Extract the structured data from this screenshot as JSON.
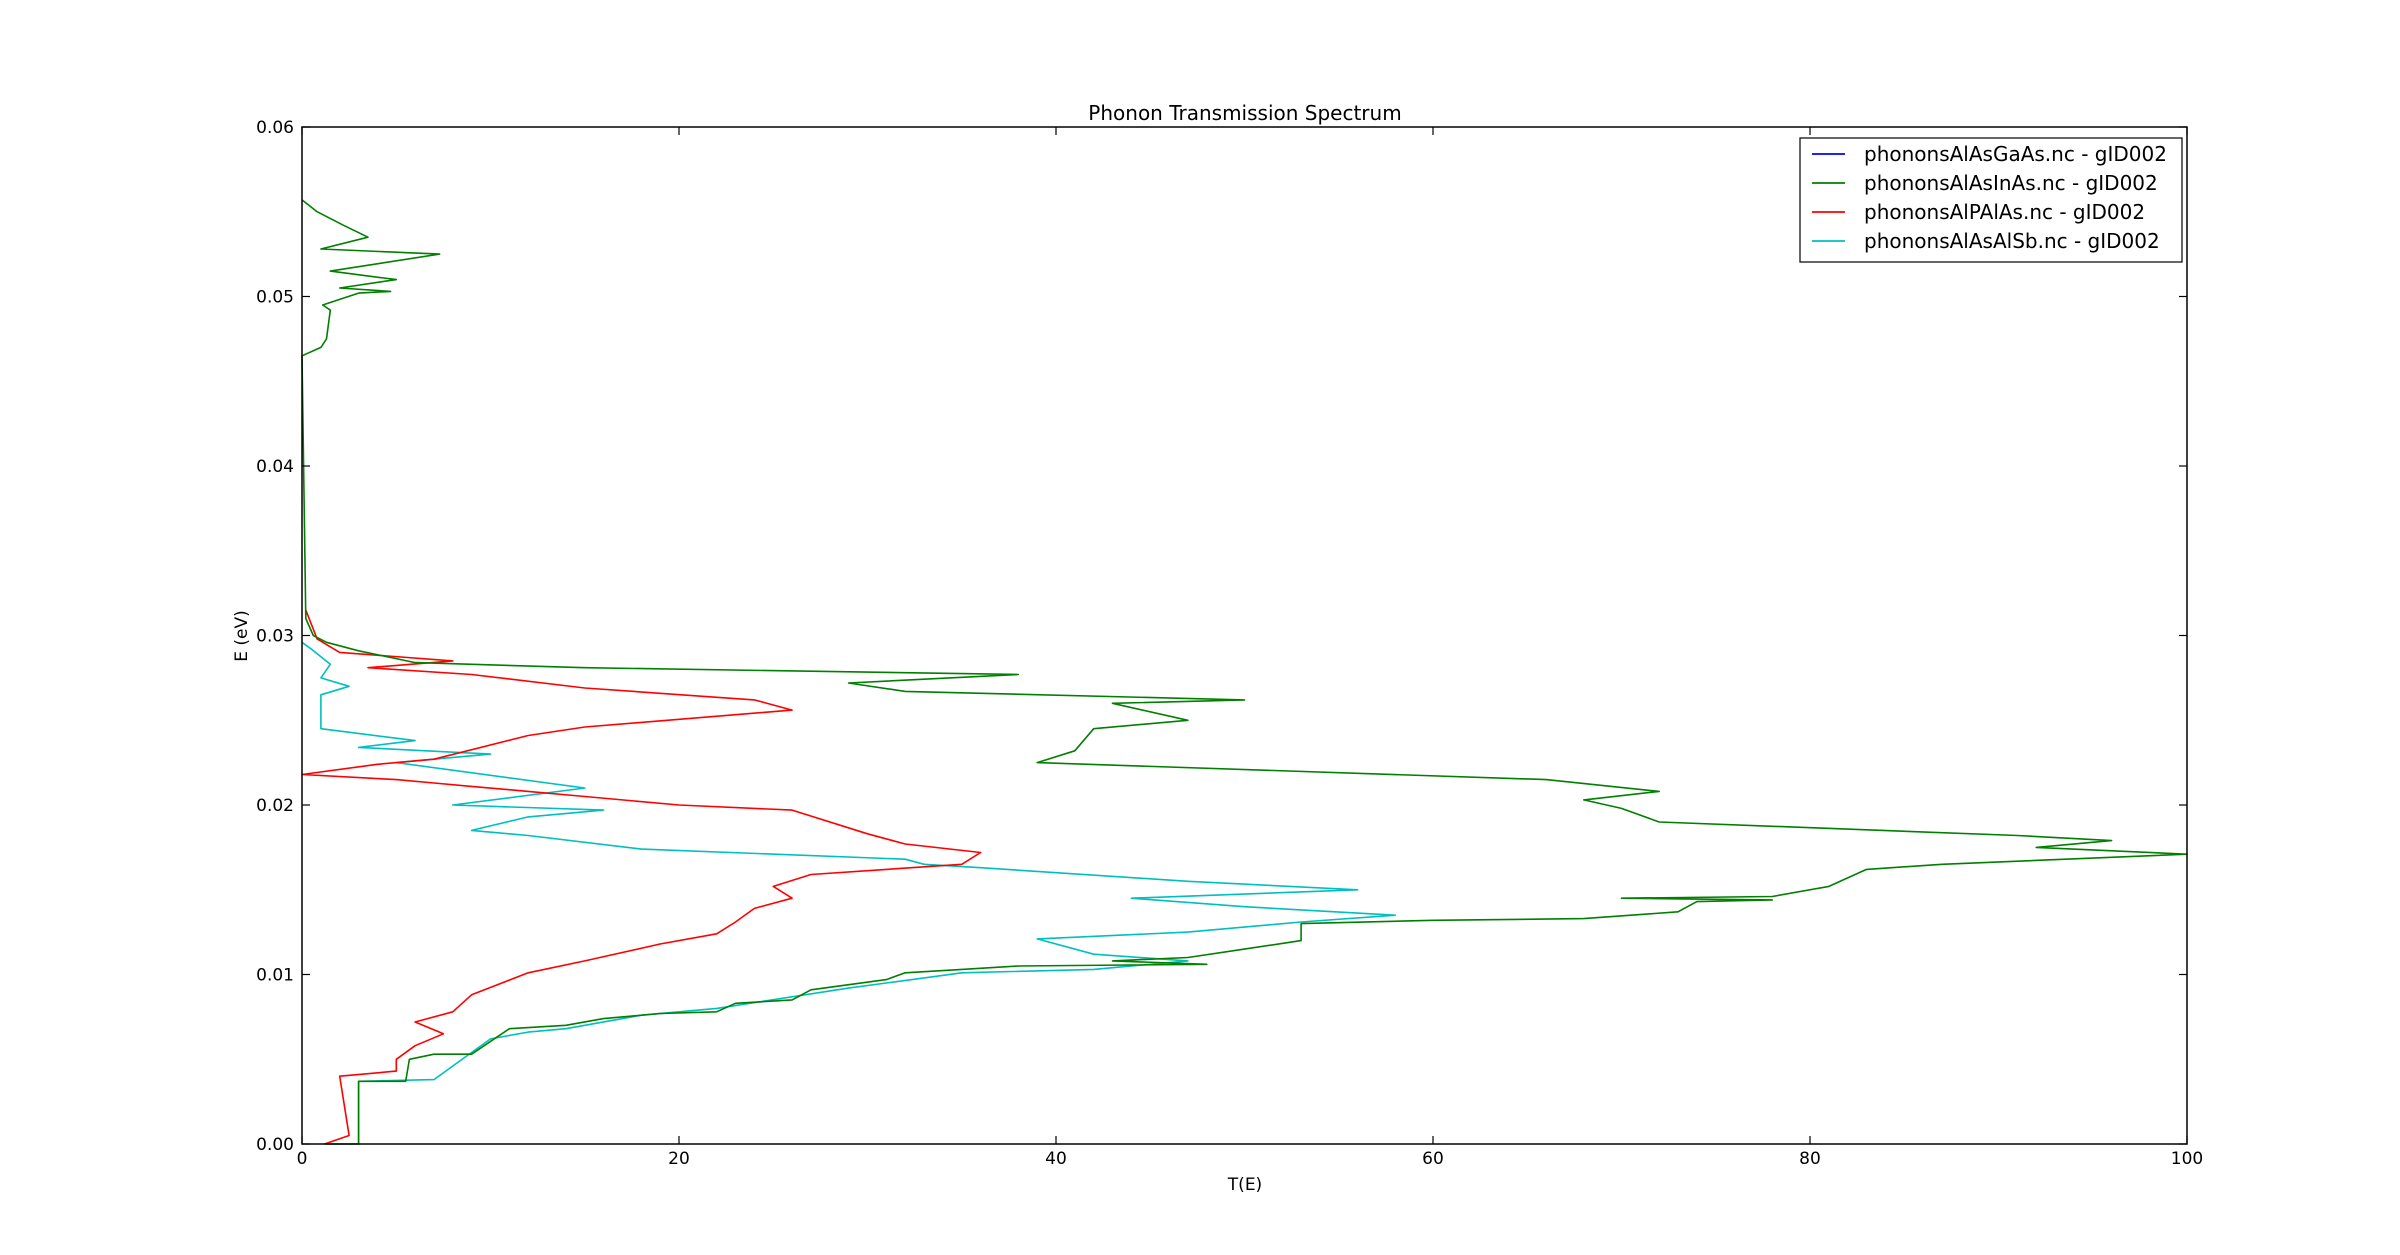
{
  "chart_data": {
    "type": "line",
    "title": "Phonon Transmission Spectrum",
    "xlabel": "T(E)",
    "ylabel": "E (eV)",
    "xlim": [
      0,
      100
    ],
    "ylim": [
      0,
      0.06
    ],
    "x_ticks": [
      "0",
      "20",
      "40",
      "60",
      "80",
      "100"
    ],
    "y_ticks": [
      "0.00",
      "0.01",
      "0.02",
      "0.03",
      "0.04",
      "0.05",
      "0.06"
    ],
    "grid": false,
    "legend": "top-right",
    "series": [
      {
        "name": "phononsAlAsGaAs.nc - gID002",
        "color": "#0000ff",
        "points": []
      },
      {
        "name": "phononsAlAsInAs.nc - gID002",
        "color": "#007f00",
        "points": [
          [
            1.2,
            0
          ],
          [
            3,
            0
          ],
          [
            3,
            0.0037
          ],
          [
            5.5,
            0.0037
          ],
          [
            5.7,
            0.005
          ],
          [
            7,
            0.0053
          ],
          [
            9,
            0.0053
          ],
          [
            11,
            0.0068
          ],
          [
            14,
            0.007
          ],
          [
            16,
            0.0074
          ],
          [
            19,
            0.0077
          ],
          [
            22,
            0.0078
          ],
          [
            23,
            0.0083
          ],
          [
            26,
            0.0085
          ],
          [
            27,
            0.0091
          ],
          [
            31,
            0.0097
          ],
          [
            32,
            0.0101
          ],
          [
            35,
            0.0103
          ],
          [
            38,
            0.0105
          ],
          [
            48,
            0.0106
          ],
          [
            43,
            0.0108
          ],
          [
            47,
            0.011
          ],
          [
            50,
            0.0115
          ],
          [
            53,
            0.012
          ],
          [
            53,
            0.013
          ],
          [
            60,
            0.0132
          ],
          [
            68,
            0.0133
          ],
          [
            73,
            0.0137
          ],
          [
            74,
            0.0143
          ],
          [
            78,
            0.0144
          ],
          [
            70,
            0.0145
          ],
          [
            78,
            0.0146
          ],
          [
            81,
            0.0152
          ],
          [
            83,
            0.0162
          ],
          [
            87,
            0.0165
          ],
          [
            100,
            0.0171
          ],
          [
            92,
            0.0175
          ],
          [
            96,
            0.0179
          ],
          [
            91,
            0.0182
          ],
          [
            72,
            0.019
          ],
          [
            70,
            0.0198
          ],
          [
            68,
            0.0203
          ],
          [
            72,
            0.0208
          ],
          [
            66,
            0.0215
          ],
          [
            39,
            0.0225
          ],
          [
            41,
            0.0232
          ],
          [
            42,
            0.0245
          ],
          [
            47,
            0.025
          ],
          [
            43,
            0.026
          ],
          [
            50,
            0.0262
          ],
          [
            32,
            0.0267
          ],
          [
            29,
            0.0272
          ],
          [
            38,
            0.0277
          ],
          [
            15,
            0.0281
          ],
          [
            6,
            0.0284
          ],
          [
            3,
            0.0291
          ],
          [
            1.3,
            0.0296
          ],
          [
            0.6,
            0.03
          ],
          [
            0.2,
            0.031
          ],
          [
            0,
            0.0465
          ],
          [
            1,
            0.047
          ],
          [
            1.3,
            0.0475
          ],
          [
            1.5,
            0.0492
          ],
          [
            1.1,
            0.0495
          ],
          [
            3,
            0.0502
          ],
          [
            4.7,
            0.0503
          ],
          [
            2,
            0.0505
          ],
          [
            5,
            0.051
          ],
          [
            1.5,
            0.0515
          ],
          [
            7.3,
            0.0525
          ],
          [
            1,
            0.0528
          ],
          [
            3.5,
            0.0535
          ],
          [
            2.2,
            0.0542
          ],
          [
            0.8,
            0.055
          ],
          [
            0,
            0.0557
          ]
        ]
      },
      {
        "name": "phononsAlPAlAs.nc - gID002",
        "color": "#ff0000",
        "points": [
          [
            1.2,
            0
          ],
          [
            2.5,
            0.0005
          ],
          [
            2,
            0.004
          ],
          [
            5,
            0.0043
          ],
          [
            5,
            0.005
          ],
          [
            6,
            0.0058
          ],
          [
            7.5,
            0.0065
          ],
          [
            6,
            0.0072
          ],
          [
            8,
            0.0078
          ],
          [
            9,
            0.0088
          ],
          [
            12,
            0.0101
          ],
          [
            15,
            0.0108
          ],
          [
            19,
            0.0118
          ],
          [
            22,
            0.0124
          ],
          [
            23,
            0.0131
          ],
          [
            24,
            0.0139
          ],
          [
            26,
            0.0145
          ],
          [
            25,
            0.0152
          ],
          [
            27,
            0.0159
          ],
          [
            35,
            0.0165
          ],
          [
            36,
            0.0172
          ],
          [
            32,
            0.0177
          ],
          [
            30,
            0.0183
          ],
          [
            26,
            0.0197
          ],
          [
            20,
            0.02
          ],
          [
            15,
            0.0205
          ],
          [
            12,
            0.0208
          ],
          [
            9,
            0.0211
          ],
          [
            7,
            0.0213
          ],
          [
            5,
            0.0215
          ],
          [
            0,
            0.0218
          ],
          [
            4,
            0.0224
          ],
          [
            7,
            0.0227
          ],
          [
            12,
            0.0241
          ],
          [
            15,
            0.0246
          ],
          [
            26,
            0.0256
          ],
          [
            24,
            0.0262
          ],
          [
            15,
            0.0269
          ],
          [
            9,
            0.0277
          ],
          [
            3.5,
            0.0281
          ],
          [
            8,
            0.0285
          ],
          [
            2,
            0.029
          ],
          [
            0.8,
            0.0298
          ],
          [
            0.2,
            0.0315
          ]
        ]
      },
      {
        "name": "phononsAlAsAlSb.nc - gID002",
        "color": "#00bfbf",
        "points": [
          [
            3,
            0
          ],
          [
            3,
            0.0037
          ],
          [
            7,
            0.0038
          ],
          [
            8,
            0.0046
          ],
          [
            10,
            0.0062
          ],
          [
            12,
            0.0066
          ],
          [
            14,
            0.0068
          ],
          [
            18,
            0.0076
          ],
          [
            22,
            0.008
          ],
          [
            29,
            0.0092
          ],
          [
            35,
            0.0101
          ],
          [
            42,
            0.0103
          ],
          [
            47,
            0.0108
          ],
          [
            42,
            0.0112
          ],
          [
            39,
            0.0121
          ],
          [
            47,
            0.0125
          ],
          [
            53,
            0.0131
          ],
          [
            58,
            0.0135
          ],
          [
            50,
            0.014
          ],
          [
            44,
            0.0145
          ],
          [
            56,
            0.015
          ],
          [
            47,
            0.0155
          ],
          [
            36,
            0.0163
          ],
          [
            33,
            0.0165
          ],
          [
            32,
            0.0168
          ],
          [
            18,
            0.0174
          ],
          [
            12,
            0.0182
          ],
          [
            9,
            0.0185
          ],
          [
            12,
            0.0193
          ],
          [
            16,
            0.0197
          ],
          [
            8,
            0.02
          ],
          [
            15,
            0.021
          ],
          [
            5,
            0.0225
          ],
          [
            10,
            0.023
          ],
          [
            3,
            0.0234
          ],
          [
            6,
            0.0238
          ],
          [
            1,
            0.0245
          ],
          [
            1,
            0.0265
          ],
          [
            2.5,
            0.027
          ],
          [
            1,
            0.0275
          ],
          [
            1.5,
            0.0283
          ],
          [
            0.5,
            0.0292
          ],
          [
            0,
            0.0296
          ]
        ]
      }
    ]
  }
}
